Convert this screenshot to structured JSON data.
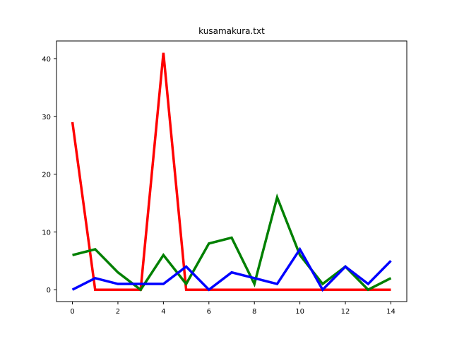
{
  "chart_data": {
    "type": "line",
    "title": "kusamakura.txt",
    "xlabel": "",
    "ylabel": "",
    "x": [
      0,
      1,
      2,
      3,
      4,
      5,
      6,
      7,
      8,
      9,
      10,
      11,
      12,
      13,
      14
    ],
    "xlim": [
      -0.7,
      14.7
    ],
    "ylim": [
      -2.05,
      43.05
    ],
    "xticks": [
      0,
      2,
      4,
      6,
      8,
      10,
      12,
      14
    ],
    "yticks": [
      0,
      10,
      20,
      30,
      40
    ],
    "grid": false,
    "legend": "none",
    "series": [
      {
        "color": "#ff0000",
        "values": [
          29,
          0,
          0,
          0,
          41,
          0,
          0,
          0,
          0,
          0,
          0,
          0,
          0,
          0,
          0
        ]
      },
      {
        "color": "#008000",
        "values": [
          6,
          7,
          3,
          0,
          6,
          1,
          8,
          9,
          1,
          16,
          6,
          1,
          4,
          0,
          2
        ]
      },
      {
        "color": "#0000ff",
        "values": [
          0,
          2,
          1,
          1,
          1,
          4,
          0,
          3,
          2,
          1,
          7,
          0,
          4,
          1,
          5
        ]
      }
    ]
  }
}
